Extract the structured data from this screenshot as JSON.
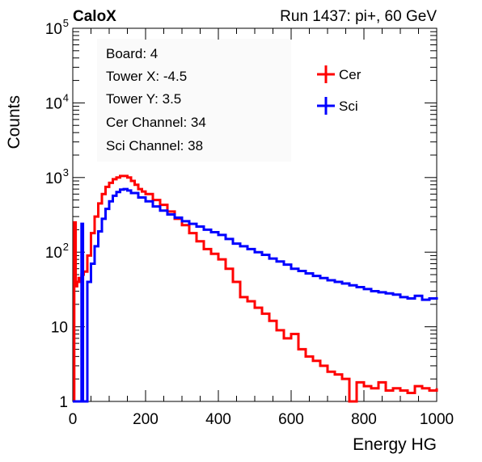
{
  "header": {
    "left_label": "CaloX",
    "run_info": "Run 1437: pi+, 60 GeV"
  },
  "info_box": [
    "Board: 4",
    "Tower X: -4.5",
    "Tower Y: 3.5",
    "Cer Channel: 34",
    "Sci Channel: 38"
  ],
  "chart_data": {
    "type": "line",
    "title": "",
    "xlabel": "Energy HG",
    "ylabel": "Counts",
    "xlim": [
      0,
      1000
    ],
    "ylim": [
      1,
      100000
    ],
    "y_scale": "log",
    "grid": false,
    "legend_position": "top-right",
    "x_ticks": [
      0,
      200,
      400,
      600,
      800,
      1000
    ],
    "y_ticks": [
      {
        "value": 1,
        "label": "1"
      },
      {
        "value": 10,
        "label": "10"
      },
      {
        "value": 100,
        "label": "10",
        "sup": "2"
      },
      {
        "value": 1000,
        "label": "10",
        "sup": "3"
      },
      {
        "value": 10000,
        "label": "10",
        "sup": "4"
      },
      {
        "value": 100000,
        "label": "10",
        "sup": "5"
      }
    ],
    "series": [
      {
        "name": "Cer",
        "color": "#ff0000",
        "style": "step",
        "x": [
          0,
          4,
          8,
          12,
          16,
          20,
          24,
          30,
          40,
          50,
          60,
          70,
          80,
          90,
          100,
          110,
          120,
          130,
          140,
          150,
          160,
          170,
          180,
          190,
          200,
          220,
          240,
          260,
          280,
          300,
          320,
          340,
          360,
          380,
          400,
          420,
          440,
          460,
          480,
          500,
          520,
          540,
          560,
          580,
          600,
          620,
          640,
          660,
          680,
          700,
          720,
          740,
          760,
          780,
          800,
          820,
          840,
          860,
          880,
          900,
          920,
          940,
          960,
          980,
          1000
        ],
        "y": [
          1,
          250,
          35,
          40,
          45,
          40,
          50,
          55,
          90,
          180,
          300,
          450,
          600,
          750,
          850,
          950,
          1000,
          1050,
          1050,
          1000,
          900,
          800,
          700,
          650,
          600,
          500,
          430,
          350,
          280,
          230,
          180,
          140,
          110,
          95,
          80,
          60,
          40,
          25,
          22,
          18,
          15,
          12,
          9,
          7,
          8,
          5,
          4,
          3.5,
          3,
          2.5,
          2.3,
          2,
          1,
          1.8,
          1.6,
          1.5,
          1.8,
          1.4,
          1.5,
          1.4,
          1.3,
          1.6,
          1.5,
          1.4,
          1.5
        ]
      },
      {
        "name": "Sci",
        "color": "#0000ff",
        "style": "step",
        "x": [
          0,
          10,
          20,
          24,
          28,
          34,
          40,
          50,
          60,
          70,
          80,
          90,
          100,
          110,
          120,
          130,
          140,
          150,
          160,
          180,
          200,
          220,
          240,
          260,
          280,
          300,
          320,
          340,
          360,
          380,
          400,
          420,
          440,
          460,
          480,
          500,
          520,
          540,
          560,
          580,
          600,
          620,
          640,
          660,
          680,
          700,
          720,
          740,
          760,
          780,
          800,
          820,
          840,
          860,
          880,
          900,
          920,
          940,
          960,
          980,
          1000
        ],
        "y": [
          1,
          1,
          1,
          240,
          1,
          1,
          40,
          70,
          120,
          190,
          280,
          380,
          480,
          570,
          640,
          690,
          700,
          670,
          620,
          540,
          480,
          410,
          360,
          320,
          290,
          260,
          240,
          220,
          200,
          185,
          170,
          150,
          130,
          120,
          110,
          100,
          92,
          82,
          75,
          68,
          60,
          56,
          52,
          48,
          45,
          42,
          40,
          38,
          36,
          34,
          32,
          30,
          29,
          28,
          27,
          25,
          24,
          26,
          23,
          24,
          25
        ]
      }
    ]
  }
}
